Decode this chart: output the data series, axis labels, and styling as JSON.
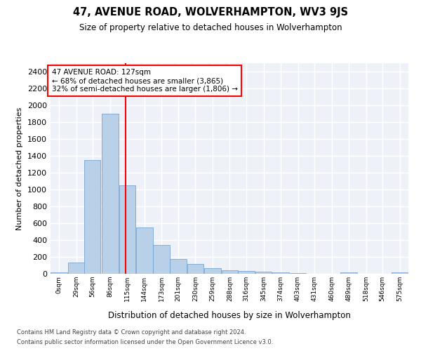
{
  "title": "47, AVENUE ROAD, WOLVERHAMPTON, WV3 9JS",
  "subtitle": "Size of property relative to detached houses in Wolverhampton",
  "xlabel": "Distribution of detached houses by size in Wolverhampton",
  "ylabel": "Number of detached properties",
  "footnote1": "Contains HM Land Registry data © Crown copyright and database right 2024.",
  "footnote2": "Contains public sector information licensed under the Open Government Licence v3.0.",
  "bar_color": "#b8d0e8",
  "bar_edge_color": "#6699cc",
  "background_color": "#eef2f8",
  "grid_color": "white",
  "property_label": "47 AVENUE ROAD: 127sqm",
  "annotation_line1": "← 68% of detached houses are smaller (3,865)",
  "annotation_line2": "32% of semi-detached houses are larger (1,806) →",
  "bin_labels": [
    "0sqm",
    "29sqm",
    "56sqm",
    "86sqm",
    "115sqm",
    "144sqm",
    "173sqm",
    "201sqm",
    "230sqm",
    "259sqm",
    "288sqm",
    "316sqm",
    "345sqm",
    "374sqm",
    "403sqm",
    "431sqm",
    "460sqm",
    "489sqm",
    "518sqm",
    "546sqm",
    "575sqm"
  ],
  "bin_edges": [
    0,
    29,
    56,
    86,
    115,
    144,
    173,
    201,
    230,
    259,
    288,
    316,
    345,
    374,
    403,
    431,
    460,
    489,
    518,
    546,
    575
  ],
  "bar_heights": [
    15,
    130,
    1350,
    1900,
    1050,
    550,
    340,
    175,
    115,
    65,
    40,
    30,
    25,
    18,
    12,
    0,
    0,
    20,
    0,
    0,
    15
  ],
  "ylim": [
    0,
    2500
  ],
  "yticks": [
    0,
    200,
    400,
    600,
    800,
    1000,
    1200,
    1400,
    1600,
    1800,
    2000,
    2200,
    2400
  ],
  "vline_x": 127,
  "vline_color": "red"
}
